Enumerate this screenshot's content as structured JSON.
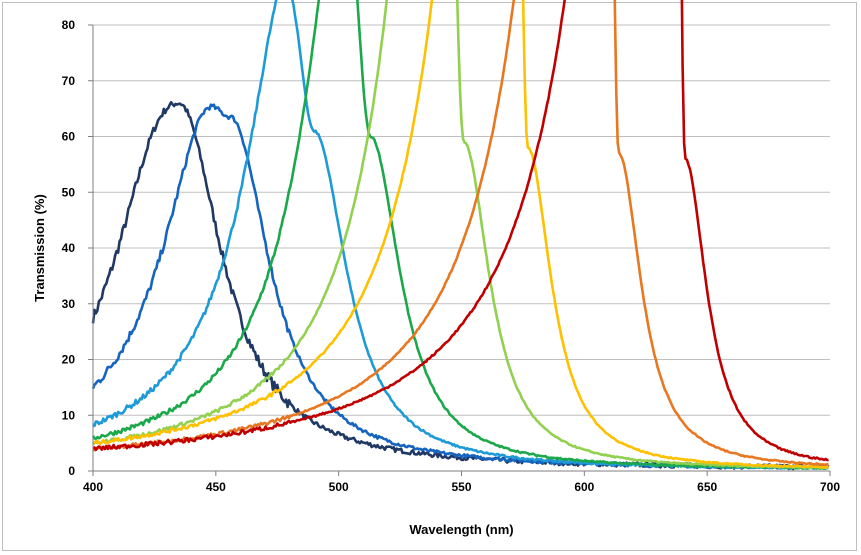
{
  "chart_data": {
    "type": "line",
    "title": "",
    "xlabel": "Wavelength (nm)",
    "ylabel": "Transmission (%)",
    "xlim": [
      400,
      700
    ],
    "ylim": [
      0,
      80
    ],
    "x_ticks": [
      "400",
      "450",
      "500",
      "550",
      "600",
      "650",
      "700"
    ],
    "y_ticks": [
      "0",
      "10",
      "20",
      "30",
      "40",
      "50",
      "60",
      "70",
      "80"
    ],
    "grid": "horizontal",
    "legend": "none",
    "series": [
      {
        "color": "#1f3864",
        "center": 435,
        "peak": 66,
        "fwhm": 42,
        "base": 0.3,
        "start": 31,
        "noise": 1.4
      },
      {
        "color": "#1565c0",
        "center": 456,
        "peak": 63.5,
        "fwhm": 38,
        "base": 0.3,
        "start": 16,
        "noise": 1.0
      },
      {
        "color": "#1e9bd7",
        "center": 490,
        "peak": 61,
        "fwhm": 32,
        "base": 0.2,
        "start": 8.5,
        "noise": 0.6
      },
      {
        "color": "#1aa84a",
        "center": 513,
        "peak": 60,
        "fwhm": 29,
        "base": 0.2,
        "start": 6,
        "noise": 0.5
      },
      {
        "color": "#92d050",
        "center": 551,
        "peak": 59,
        "fwhm": 25,
        "base": 0.2,
        "start": 5,
        "noise": 0.4
      },
      {
        "color": "#ffc000",
        "center": 577,
        "peak": 58,
        "fwhm": 23,
        "base": 0.2,
        "start": 5,
        "noise": 0.4
      },
      {
        "color": "#e87722",
        "center": 614,
        "peak": 57,
        "fwhm": 22,
        "base": 0.2,
        "start": 4,
        "noise": 0.4
      },
      {
        "color": "#c00000",
        "center": 641,
        "peak": 56,
        "fwhm": 21,
        "base": 0.2,
        "start": 4,
        "noise": 0.5
      }
    ]
  }
}
